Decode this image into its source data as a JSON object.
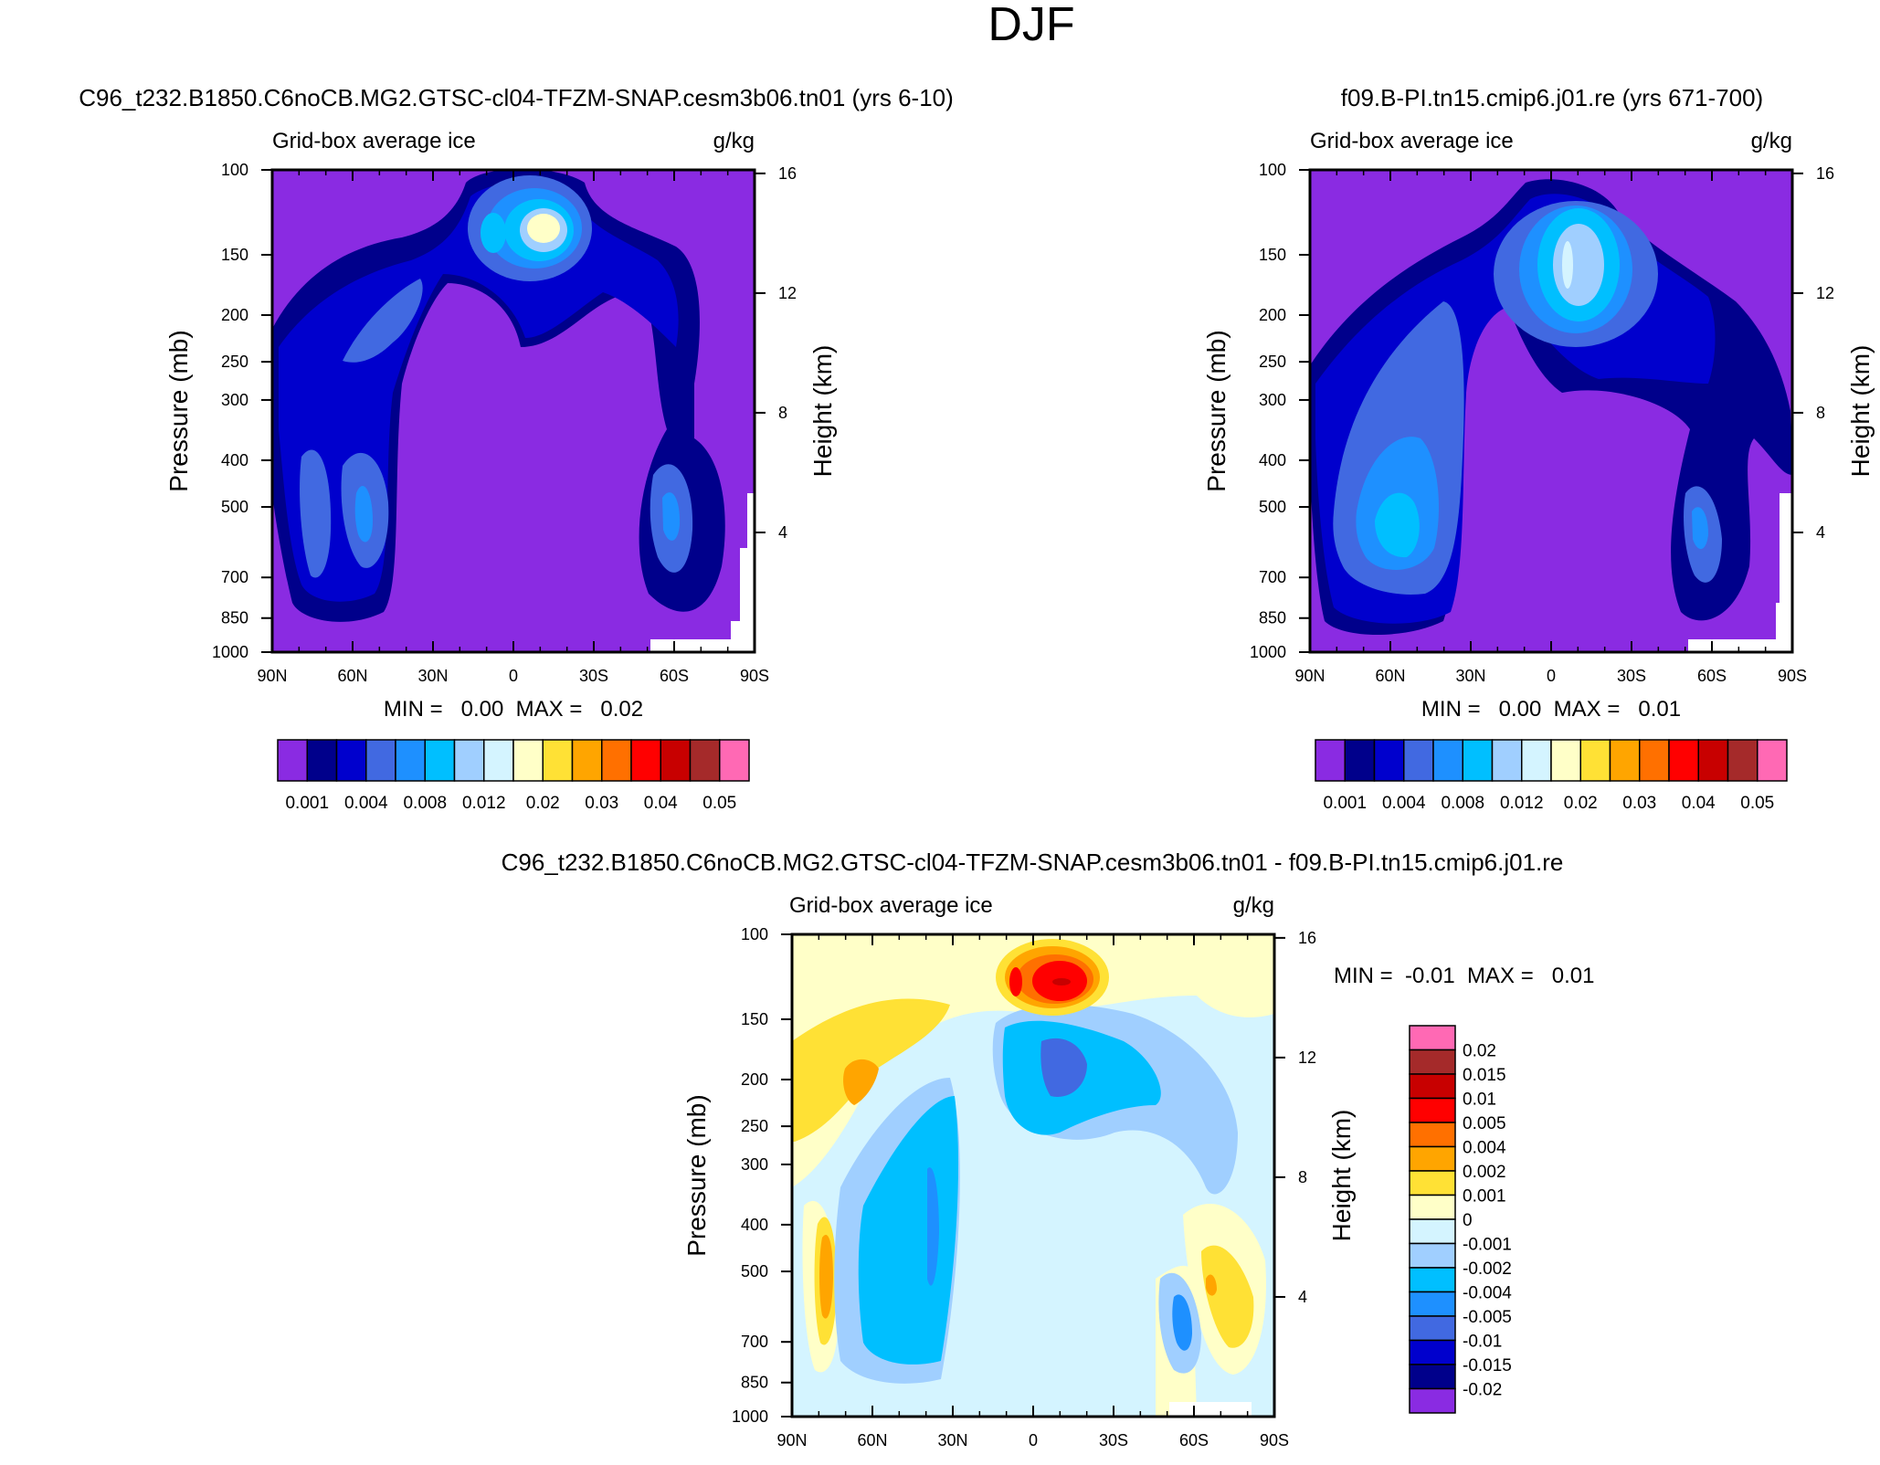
{
  "page_title": "DJF",
  "chart_data": [
    {
      "type": "contour",
      "title": "C96_t232.B1850.C6noCB.MG2.GTSC-cl04-TFZM-SNAP.cesm3b06.tn01 (yrs 6-10)",
      "subtitle_left": "Grid-box average ice",
      "subtitle_right": "g/kg",
      "xlabel": "",
      "ylabel": "Pressure (mb)",
      "ylabel_right": "Height (km)",
      "x_ticks": [
        "90N",
        "60N",
        "30N",
        "0",
        "30S",
        "60S",
        "90S"
      ],
      "y_ticks": [
        "100",
        "150",
        "200",
        "250",
        "300",
        "400",
        "500",
        "700",
        "850",
        "1000"
      ],
      "y2_ticks": [
        "16",
        "12",
        "8",
        "4"
      ],
      "xlim": [
        90,
        -90
      ],
      "ylim": [
        1000,
        100
      ],
      "stats": "MIN =   0.00  MAX =   0.02",
      "colorbar_labels": [
        "0.001",
        "0.004",
        "0.008",
        "0.012",
        "0.02",
        "0.03",
        "0.04",
        "0.05"
      ],
      "colorbar_colors": [
        "#8a2be2",
        "#00008b",
        "#0000cd",
        "#4169e1",
        "#1e90ff",
        "#00bfff",
        "#a0cfff",
        "#d4f4ff",
        "#ffffc8",
        "#ffe135",
        "#ffa500",
        "#ff7000",
        "#ff0000",
        "#c80000",
        "#a52a2a",
        "#ff69b4"
      ]
    },
    {
      "type": "contour",
      "title": "f09.B-PI.tn15.cmip6.j01.re (yrs 671-700)",
      "subtitle_left": "Grid-box average ice",
      "subtitle_right": "g/kg",
      "xlabel": "",
      "ylabel": "Pressure (mb)",
      "ylabel_right": "Height (km)",
      "x_ticks": [
        "90N",
        "60N",
        "30N",
        "0",
        "30S",
        "60S",
        "90S"
      ],
      "y_ticks": [
        "100",
        "150",
        "200",
        "250",
        "300",
        "400",
        "500",
        "700",
        "850",
        "1000"
      ],
      "y2_ticks": [
        "16",
        "12",
        "8",
        "4"
      ],
      "xlim": [
        90,
        -90
      ],
      "ylim": [
        1000,
        100
      ],
      "stats": "MIN =   0.00  MAX =   0.01",
      "colorbar_labels": [
        "0.001",
        "0.004",
        "0.008",
        "0.012",
        "0.02",
        "0.03",
        "0.04",
        "0.05"
      ],
      "colorbar_colors": [
        "#8a2be2",
        "#00008b",
        "#0000cd",
        "#4169e1",
        "#1e90ff",
        "#00bfff",
        "#a0cfff",
        "#d4f4ff",
        "#ffffc8",
        "#ffe135",
        "#ffa500",
        "#ff7000",
        "#ff0000",
        "#c80000",
        "#a52a2a",
        "#ff69b4"
      ]
    },
    {
      "type": "contour",
      "title": "C96_t232.B1850.C6noCB.MG2.GTSC-cl04-TFZM-SNAP.cesm3b06.tn01 - f09.B-PI.tn15.cmip6.j01.re",
      "subtitle_left": "Grid-box average ice",
      "subtitle_right": "g/kg",
      "xlabel": "",
      "ylabel": "Pressure (mb)",
      "ylabel_right": "Height (km)",
      "x_ticks": [
        "90N",
        "60N",
        "30N",
        "0",
        "30S",
        "60S",
        "90S"
      ],
      "y_ticks": [
        "100",
        "150",
        "200",
        "250",
        "300",
        "400",
        "500",
        "700",
        "850",
        "1000"
      ],
      "y2_ticks": [
        "16",
        "12",
        "8",
        "4"
      ],
      "xlim": [
        90,
        -90
      ],
      "ylim": [
        1000,
        100
      ],
      "stats": "MIN =  -0.01  MAX =   0.01",
      "colorbar_labels": [
        "0.02",
        "0.015",
        "0.01",
        "0.005",
        "0.004",
        "0.002",
        "0.001",
        "0",
        "-0.001",
        "-0.002",
        "-0.004",
        "-0.005",
        "-0.01",
        "-0.015",
        "-0.02"
      ],
      "colorbar_colors": [
        "#ff69b4",
        "#a52a2a",
        "#c80000",
        "#ff0000",
        "#ff7000",
        "#ffa500",
        "#ffe135",
        "#ffffc8",
        "#d4f4ff",
        "#a0cfff",
        "#00bfff",
        "#1e90ff",
        "#4169e1",
        "#0000cd",
        "#00008b",
        "#8a2be2"
      ]
    }
  ]
}
